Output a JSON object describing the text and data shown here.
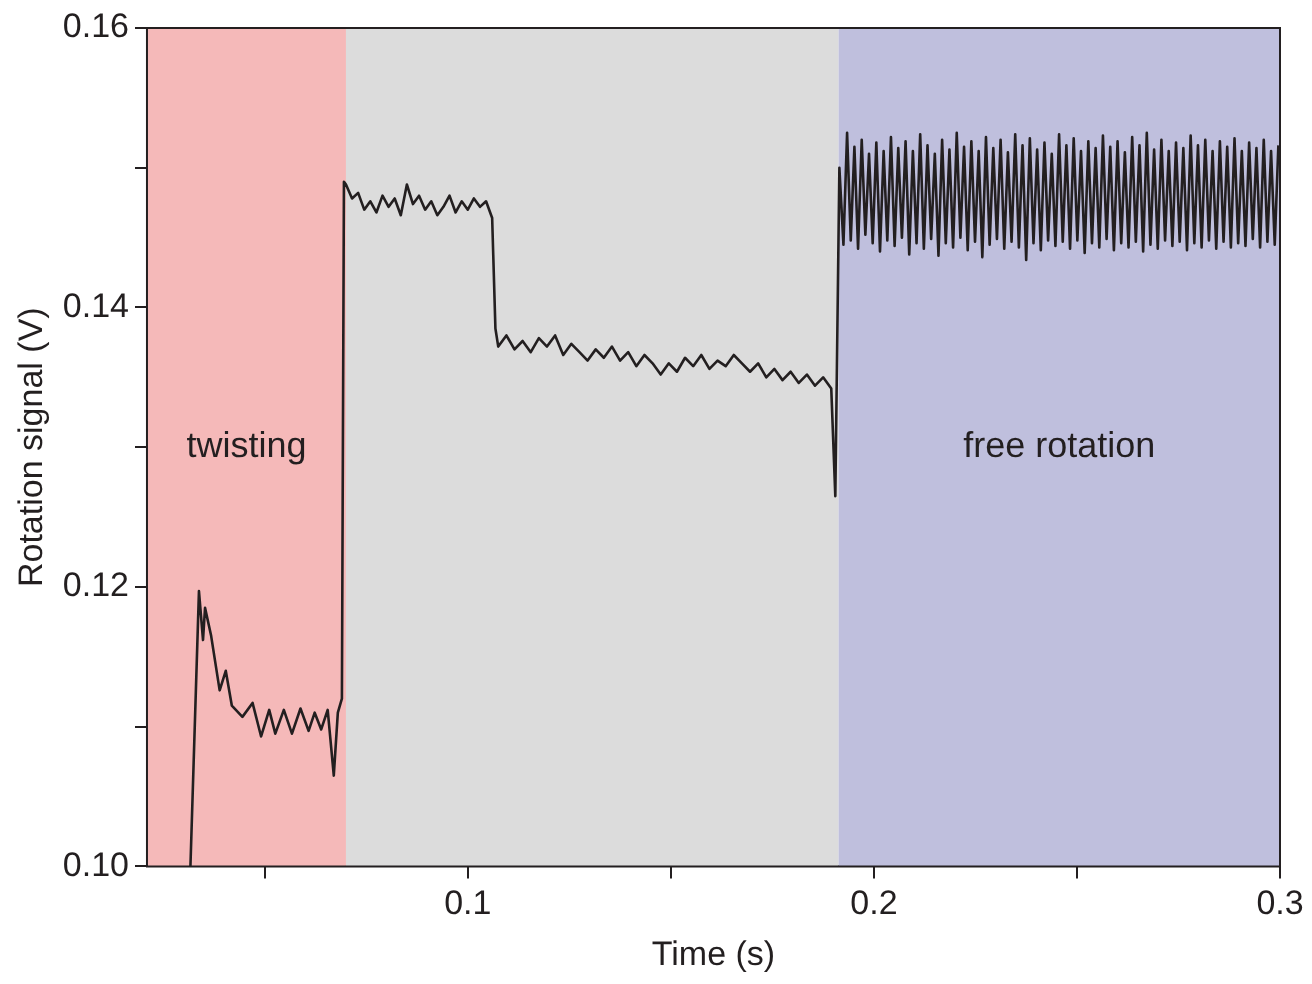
{
  "chart_data": {
    "type": "line",
    "xlabel": "Time (s)",
    "ylabel": "Rotation signal (V)",
    "xlim": [
      0.021,
      0.3
    ],
    "ylim": [
      0.1,
      0.16
    ],
    "xticks": [
      {
        "value": 0.05,
        "label": null
      },
      {
        "value": 0.1,
        "label": "0.1"
      },
      {
        "value": 0.15,
        "label": null
      },
      {
        "value": 0.2,
        "label": "0.2"
      },
      {
        "value": 0.25,
        "label": null
      },
      {
        "value": 0.3,
        "label": "0.3"
      }
    ],
    "yticks": [
      {
        "value": 0.1,
        "label": "0.10"
      },
      {
        "value": 0.11,
        "label": null
      },
      {
        "value": 0.12,
        "label": "0.12"
      },
      {
        "value": 0.13,
        "label": null
      },
      {
        "value": 0.14,
        "label": "0.14"
      },
      {
        "value": 0.15,
        "label": null
      },
      {
        "value": 0.16,
        "label": "0.16"
      }
    ],
    "grid": false,
    "legend": false,
    "marker": "none",
    "line_style": "solid",
    "bands": [
      {
        "axis": "x",
        "from": 0.021,
        "to": 0.07,
        "label": "twisting",
        "color": "#f5b9b9"
      },
      {
        "axis": "x",
        "from": 0.07,
        "to": 0.1913,
        "label": null,
        "color": "#dcdcdc"
      },
      {
        "axis": "x",
        "from": 0.1913,
        "to": 0.3,
        "label": "free rotation",
        "color": "#bfbfdd"
      }
    ],
    "series": [
      {
        "color": "#231f20",
        "x": [
          0.0317,
          0.0338,
          0.0348,
          0.0353,
          0.0368,
          0.0389,
          0.0404,
          0.0419,
          0.0445,
          0.047,
          0.0491,
          0.0511,
          0.0526,
          0.0547,
          0.0567,
          0.0588,
          0.0608,
          0.0623,
          0.0639,
          0.0655,
          0.067,
          0.068,
          0.069,
          0.0695,
          0.07,
          0.0715,
          0.073,
          0.0745,
          0.076,
          0.0775,
          0.079,
          0.0805,
          0.082,
          0.0835,
          0.085,
          0.0865,
          0.088,
          0.0895,
          0.091,
          0.0925,
          0.094,
          0.0955,
          0.097,
          0.0985,
          0.1,
          0.1015,
          0.103,
          0.1045,
          0.106,
          0.1068,
          0.1075,
          0.1095,
          0.1115,
          0.1135,
          0.1155,
          0.1175,
          0.1195,
          0.1215,
          0.1235,
          0.1255,
          0.1275,
          0.1295,
          0.1315,
          0.1335,
          0.1355,
          0.1375,
          0.1395,
          0.1415,
          0.1435,
          0.1455,
          0.1475,
          0.1495,
          0.1515,
          0.1535,
          0.1555,
          0.1575,
          0.1595,
          0.1615,
          0.1635,
          0.1655,
          0.1675,
          0.1695,
          0.1715,
          0.1735,
          0.1755,
          0.1775,
          0.1795,
          0.1815,
          0.1835,
          0.1855,
          0.1875,
          0.1895,
          0.1905,
          0.1915,
          0.1925,
          0.1934,
          0.1943,
          0.1952,
          0.1961,
          0.197,
          0.1979,
          0.1988,
          0.1997,
          0.2006,
          0.2015,
          0.2024,
          0.2033,
          0.2042,
          0.2051,
          0.206,
          0.2069,
          0.2078,
          0.2087,
          0.2096,
          0.2105,
          0.2114,
          0.2123,
          0.2132,
          0.2141,
          0.215,
          0.2159,
          0.2168,
          0.2177,
          0.2186,
          0.2195,
          0.2204,
          0.2213,
          0.2222,
          0.2231,
          0.224,
          0.2249,
          0.2258,
          0.2267,
          0.2276,
          0.2285,
          0.2294,
          0.2303,
          0.2312,
          0.2321,
          0.233,
          0.2339,
          0.2348,
          0.2357,
          0.2366,
          0.2375,
          0.2384,
          0.2393,
          0.2402,
          0.2411,
          0.242,
          0.2429,
          0.2438,
          0.2447,
          0.2456,
          0.2465,
          0.2474,
          0.2483,
          0.2492,
          0.2501,
          0.251,
          0.2519,
          0.2528,
          0.2537,
          0.2546,
          0.2555,
          0.2564,
          0.2573,
          0.2582,
          0.2591,
          0.26,
          0.2609,
          0.2618,
          0.2627,
          0.2636,
          0.2645,
          0.2654,
          0.2663,
          0.2672,
          0.2681,
          0.269,
          0.2699,
          0.2708,
          0.2717,
          0.2726,
          0.2735,
          0.2744,
          0.2753,
          0.2762,
          0.2771,
          0.278,
          0.2789,
          0.2798,
          0.2807,
          0.2816,
          0.2825,
          0.2834,
          0.2843,
          0.2852,
          0.2861,
          0.287,
          0.2879,
          0.2888,
          0.2897,
          0.2906,
          0.2915,
          0.2924,
          0.2933,
          0.2942,
          0.2951,
          0.296,
          0.2969,
          0.2978,
          0.2987,
          0.2996
        ],
        "values": [
          0.1,
          0.1197,
          0.1162,
          0.1185,
          0.1165,
          0.1126,
          0.114,
          0.1115,
          0.1107,
          0.1117,
          0.1093,
          0.1112,
          0.1095,
          0.1112,
          0.1095,
          0.1113,
          0.1097,
          0.111,
          0.1098,
          0.1112,
          0.1065,
          0.111,
          0.112,
          0.149,
          0.1488,
          0.1478,
          0.1482,
          0.147,
          0.1476,
          0.1468,
          0.148,
          0.1472,
          0.1478,
          0.1466,
          0.1488,
          0.1474,
          0.148,
          0.147,
          0.1476,
          0.1466,
          0.1472,
          0.148,
          0.1468,
          0.1476,
          0.147,
          0.1478,
          0.1472,
          0.1476,
          0.1464,
          0.1385,
          0.1372,
          0.138,
          0.137,
          0.1376,
          0.1368,
          0.1378,
          0.1372,
          0.138,
          0.1366,
          0.1374,
          0.1368,
          0.1362,
          0.137,
          0.1364,
          0.1372,
          0.1362,
          0.1368,
          0.1358,
          0.1366,
          0.136,
          0.1352,
          0.136,
          0.1354,
          0.1364,
          0.1358,
          0.1366,
          0.1356,
          0.1362,
          0.1358,
          0.1366,
          0.136,
          0.1354,
          0.136,
          0.135,
          0.1356,
          0.1348,
          0.1354,
          0.1346,
          0.1352,
          0.1344,
          0.135,
          0.1342,
          0.1265,
          0.15,
          0.1445,
          0.1525,
          0.1448,
          0.1515,
          0.1442,
          0.152,
          0.1452,
          0.151,
          0.1446,
          0.1518,
          0.144,
          0.1512,
          0.1448,
          0.1522,
          0.1444,
          0.1514,
          0.145,
          0.1519,
          0.1438,
          0.1512,
          0.1446,
          0.1524,
          0.1442,
          0.1516,
          0.1449,
          0.151,
          0.1437,
          0.152,
          0.1446,
          0.1513,
          0.1443,
          0.1525,
          0.145,
          0.1515,
          0.1441,
          0.1519,
          0.1447,
          0.1512,
          0.1436,
          0.1522,
          0.1445,
          0.1514,
          0.1449,
          0.152,
          0.1442,
          0.1511,
          0.1447,
          0.1524,
          0.1443,
          0.1516,
          0.1434,
          0.1521,
          0.1446,
          0.1513,
          0.1441,
          0.1518,
          0.1448,
          0.151,
          0.1444,
          0.1524,
          0.1447,
          0.1516,
          0.1442,
          0.1521,
          0.1448,
          0.1512,
          0.1439,
          0.1519,
          0.1446,
          0.1514,
          0.1443,
          0.1523,
          0.1449,
          0.1515,
          0.1441,
          0.1519,
          0.1446,
          0.1511,
          0.1443,
          0.1522,
          0.1447,
          0.1516,
          0.144,
          0.1525,
          0.1445,
          0.1513,
          0.1442,
          0.152,
          0.1448,
          0.1512,
          0.1444,
          0.1518,
          0.1447,
          0.1514,
          0.1441,
          0.1523,
          0.1446,
          0.1516,
          0.1443,
          0.152,
          0.1448,
          0.1512,
          0.1442,
          0.1519,
          0.1447,
          0.1515,
          0.1443,
          0.1521,
          0.1446,
          0.1512,
          0.1444,
          0.1518,
          0.1449,
          0.1514,
          0.1443,
          0.152,
          0.1447,
          0.1512,
          0.1445,
          0.1516
        ]
      }
    ]
  }
}
